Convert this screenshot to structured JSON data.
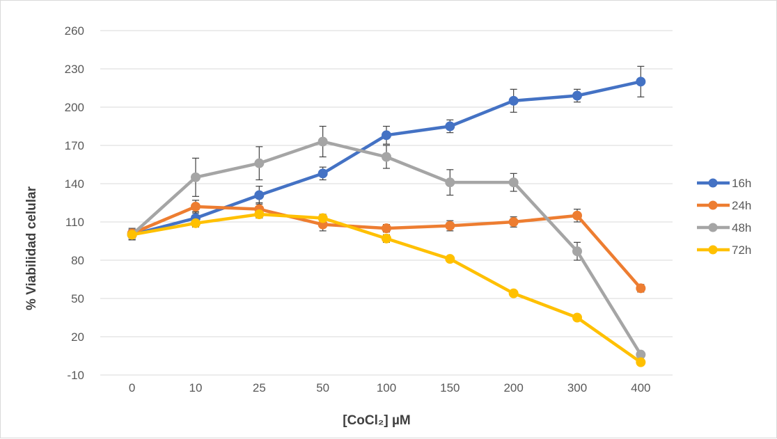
{
  "chart_data": {
    "type": "line",
    "title": "",
    "xlabel": "[CoCl₂] µM",
    "ylabel": "% Viabilidad celular",
    "categories": [
      "0",
      "10",
      "25",
      "50",
      "100",
      "150",
      "200",
      "300",
      "400"
    ],
    "yticks": [
      -10,
      20,
      50,
      80,
      110,
      140,
      170,
      200,
      230,
      260
    ],
    "ylim": [
      -10,
      260
    ],
    "grid": true,
    "legend_position": "right",
    "series": [
      {
        "name": "16h",
        "color": "#4472C4",
        "values": [
          100,
          113,
          131,
          148,
          178,
          185,
          205,
          209,
          220
        ],
        "errors": [
          4,
          5,
          7,
          5,
          7,
          5,
          9,
          5,
          12
        ]
      },
      {
        "name": "24h",
        "color": "#ED7D31",
        "values": [
          101,
          122,
          120,
          108,
          105,
          107,
          110,
          115,
          58
        ],
        "errors": [
          4,
          5,
          5,
          5,
          3,
          4,
          4,
          5,
          3
        ]
      },
      {
        "name": "48h",
        "color": "#A5A5A5",
        "values": [
          100,
          145,
          156,
          173,
          161,
          141,
          141,
          87,
          6
        ],
        "errors": [
          4,
          15,
          13,
          12,
          9,
          10,
          7,
          7,
          2
        ]
      },
      {
        "name": "72h",
        "color": "#FFC000",
        "values": [
          100,
          109,
          116,
          113,
          97,
          81,
          54,
          35,
          0
        ],
        "errors": [
          4,
          3,
          3,
          3,
          3,
          2,
          2,
          2,
          2
        ]
      }
    ]
  }
}
